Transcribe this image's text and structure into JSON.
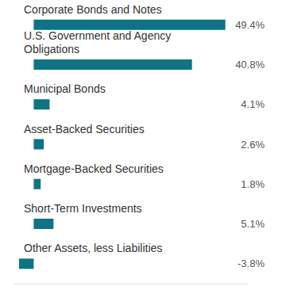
{
  "chart_data": {
    "type": "bar",
    "orientation": "horizontal",
    "categories": [
      "Corporate Bonds and Notes",
      "U.S. Government and Agency Obligations",
      "Municipal Bonds",
      "Asset-Backed Securities",
      "Mortgage-Backed Securities",
      "Short-Term Investments",
      "Other Assets, less Liabilities"
    ],
    "values": [
      49.4,
      40.8,
      4.1,
      2.6,
      1.8,
      5.1,
      -3.8
    ],
    "value_labels": [
      "49.4%",
      "40.8%",
      "4.1%",
      "2.6%",
      "1.8%",
      "5.1%",
      "-3.8%"
    ],
    "data_labels": true,
    "color": "#0f7383",
    "xlim": [
      -5,
      55
    ],
    "xticks": [],
    "grid": false,
    "tick_labels": "y"
  }
}
